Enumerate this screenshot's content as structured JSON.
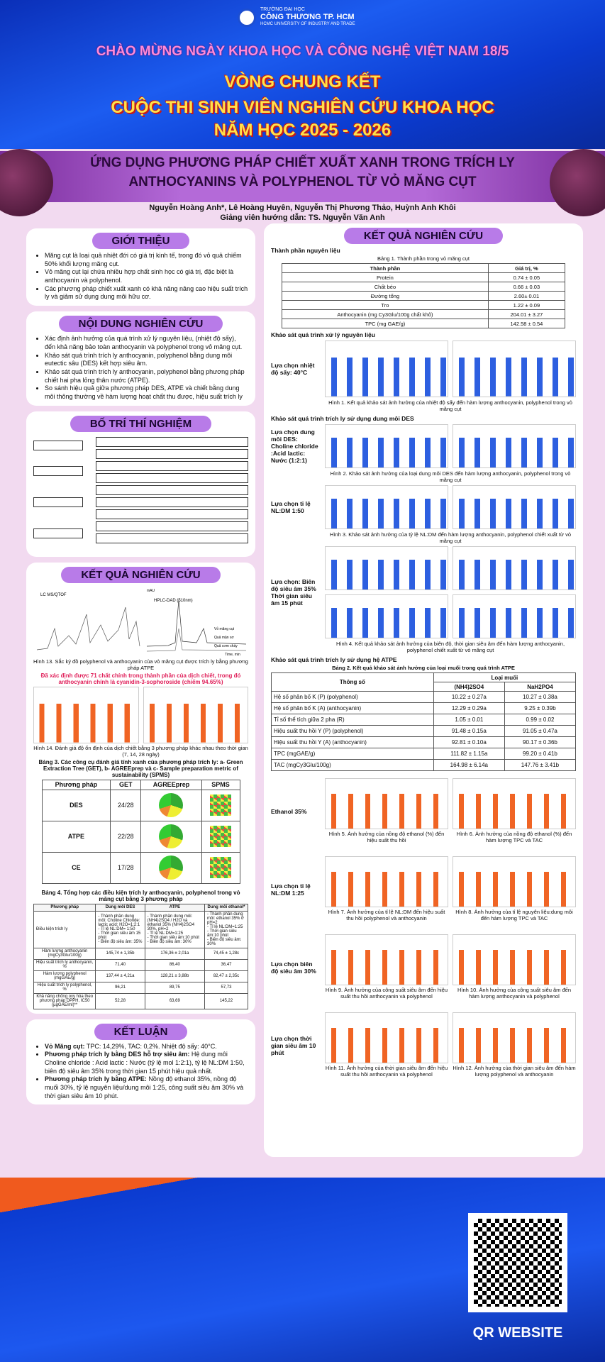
{
  "header": {
    "university_small": "TRƯỜNG ĐẠI HỌC",
    "university": "CÔNG THƯƠNG TP. HCM",
    "university_en": "HCMC UNIVERSITY OF INDUSTRY AND TRADE",
    "celebration": "CHÀO MỪNG NGÀY KHOA HỌC VÀ CÔNG NGHỆ VIỆT NAM 18/5",
    "round": "VÒNG CHUNG KẾT",
    "contest": "CUỘC THI SINH VIÊN NGHIÊN CỨU KHOA HỌC",
    "year": "NĂM HỌC 2025 - 2026"
  },
  "title": "ỨNG DỤNG PHƯƠNG PHÁP CHIẾT XUẤT XANH TRONG TRÍCH LY ANTHOCYANINS VÀ POLYPHENOL TỪ VỎ MĂNG CỤT",
  "authors": "Nguyễn Hoàng Anh*, Lê Hoàng Huyên, Nguyễn Thị Phương Thảo, Huỳnh Anh Khôi",
  "supervisor": "Giảng viên hướng dẫn: TS. Nguyễn Văn Anh",
  "intro": {
    "heading": "GIỚI THIỆU",
    "items": [
      "Măng cụt là loại quả nhiệt đới có giá trị kinh tế, trong đó vỏ quả chiếm 50% khối lượng măng cụt.",
      "Vỏ măng cụt lại chứa nhiều hợp chất sinh học có giá trị, đặc biệt là anthocyanin và polyphenol.",
      "Các phương pháp chiết xuất xanh có khả năng nâng cao hiệu suất trích ly và giảm sử dụng dung môi hữu cơ."
    ]
  },
  "content": {
    "heading": "NỘI DUNG NGHIÊN CỨU",
    "items": [
      "Xác định ảnh hưởng của quá trình xử lý nguyên liệu, (nhiệt độ sấy), đến khả năng bảo toàn anthocyanin và polyphenol trong vỏ măng cụt.",
      "Khảo sát quá trình trích ly anthocyanin, polyphenol bằng dung môi eutectic sâu (DES) kết hợp siêu âm.",
      "Khảo sát quá trình trích ly anthocyanin, polyphenol bằng phương pháp chiết hai pha lỏng thân nước (ATPE).",
      "So sánh hiệu quả giữa phương pháp DES, ATPE và chiết bằng dung môi thông thường về hàm lượng hoạt chất thu được, hiệu suất trích ly"
    ]
  },
  "design": {
    "heading": "BỐ TRÍ THÍ NGHIỆM"
  },
  "results_left": {
    "heading": "KẾT QUẢ NGHIÊN CỨU",
    "fig13_labels": [
      "LC MS/QTOF",
      "HPLC-DAD (510nm)",
      "Vỏ măng cụt",
      "Quả mận sơ",
      "Quả cơm cháy",
      "Time, min",
      "mAU"
    ],
    "fig13_caption": "Hình 13. Sắc ký đồ polyphenol và anthocyanin của vỏ măng cụt được trích ly bằng phương pháp ATPE",
    "highlight": "Đã xác định được 71 chất chính trong thành phần của dịch chiết, trong đó anthocyanin chính là cyanidin-3-sophoroside (chiếm 94.65%)",
    "fig14_caption": "Hình 14. Đánh giá độ ổn định của dịch chiết bằng 3 phương pháp khác nhau theo thời gian (7, 14, 28 ngày)",
    "table3": {
      "title": "Bảng 3. Các công cụ đánh giá tính xanh của phương pháp trích ly: a- Green Extraction Tree (GET), b- AGREEprep và c- Sample preparation metric of sustainability (SPMS)",
      "header": [
        "Phương pháp",
        "GET",
        "AGREEprep",
        "SPMS"
      ],
      "rows": [
        [
          "DES",
          "24/28"
        ],
        [
          "ATPE",
          "22/28"
        ],
        [
          "CE",
          "17/28"
        ]
      ]
    },
    "table4": {
      "title": "Bảng 4. Tổng hợp các điều kiện trích ly anthocyanin, polyphenol trong vỏ măng cụt bằng 3 phương pháp",
      "header": [
        "Phương pháp",
        "Dung môi DES",
        "ATPE",
        "Dung môi ethanol*"
      ],
      "rows": [
        [
          "Điều kiện trích ly",
          "- Thành phần dung môi: Choline Chloride: lactic acid: H2O=1:2:1\n- Tỉ lệ NL:DM= 1:50\n- Thời gian siêu âm 15 phút\n- Biên độ siêu âm: 35%",
          "- Thành phần dung môi: (NH4)2SO4 / H2O và ethanol 35% (NH4)2SO4 30%, pH=2\n- Tỉ lệ NL:DM=1:25\n- Thời gian siêu âm:10 phút\n- Biên độ siêu âm: 30%",
          "- Thành phần dung môi: ethanol 35% ở pH=2\n- Tỉ lệ NL:DM=1:25\n- Thời gian siêu âm:10 phút\n- Biên độ siêu âm: 30%"
        ],
        [
          "Hàm lượng anthocyanin (mgCy3Glu/100g)",
          "145,74 ± 1,35b",
          "176,36 ± 2,01a",
          "74,45 ± 1,28c"
        ],
        [
          "Hiệu suất trích ly anthocyanin, %",
          "71,40",
          "86,40",
          "36,47"
        ],
        [
          "Hàm lượng polyphenol (mgGAE/g)",
          "137,44 ± 4,21a",
          "128,21 ± 3,88b",
          "82,47 ± 2,35c"
        ],
        [
          "Hiệu suất trích ly polyphenol, %",
          "96,21",
          "89,75",
          "57,73"
        ],
        [
          "Khả năng chống oxy hóa theo phương pháp DPPH, IC50 (µgGAE/ml)**",
          "52,28",
          "63,69",
          "145,22"
        ]
      ]
    }
  },
  "conclusion": {
    "heading": "KẾT LUẬN",
    "items": [
      {
        "lead": "Vỏ Măng cụt:",
        "text": " TPC: 14,29%, TAC: 0,2%. Nhiệt độ sấy: 40°C."
      },
      {
        "lead": "Phương pháp trích ly bằng DES hỗ trợ siêu âm:",
        "text": " Hệ dung môi Choline chloride : Acid lactic : Nước (tỷ lệ mol 1:2:1), tỷ lệ NL:DM 1:50, biên độ siêu âm 35% trong thời gian 15 phút hiệu quả nhất."
      },
      {
        "lead": "Phương pháp trích ly bằng ATPE:",
        "text": " Nồng độ ethanol 35%, nồng độ muối 30%, tỷ lệ nguyên liệu/dung môi 1:25, công suất siêu âm 30% và thời gian siêu âm 10 phút."
      }
    ]
  },
  "results_right": {
    "heading": "KẾT QUẢ NGHIÊN CỨU",
    "raw_title": "Thành phần nguyên liệu",
    "table1": {
      "caption": "Bảng 1. Thành phần trong vỏ măng cụt",
      "header": [
        "Thành phần",
        "Giá trị, %"
      ],
      "rows": [
        [
          "Protein",
          "0.74 ± 0.05"
        ],
        [
          "Chất béo",
          "0.66 ± 0.03"
        ],
        [
          "Đường tổng",
          "2.60± 0.01"
        ],
        [
          "Tro",
          "1.22 ± 0.09"
        ],
        [
          "Anthocyanin (mg Cy3Glu/100g chất khô)",
          "204.01 ± 3.27"
        ],
        [
          "TPC (mg GAE/g)",
          "142.58 ± 0.54"
        ]
      ]
    },
    "drying": {
      "title": "Khảo sát quá trình xử lý nguyên liệu",
      "label": "Lựa chọn nhiệt độ sấy: 40°C",
      "caption": "Hình 1. Kết quả khảo sát ảnh hưởng của nhiệt độ sấy đến hàm lượng anthocyanin, polyphenol trong vỏ măng cụt"
    },
    "des": {
      "title": "Khảo sát quá trình trích ly sử dụng dung môi DES",
      "blocks": [
        {
          "label": "Lựa chọn dung môi DES: Choline chloride :Acid lactic: Nước (1:2:1)",
          "caption": "Hình 2. Khảo sát ảnh hưởng của loại dung môi DES đến hàm lượng anthocyanin, polyphenol trong vỏ măng cụt"
        },
        {
          "label": "Lựa chọn tỉ lệ NL:DM 1:50",
          "caption": "Hình 3. Khảo sát ảnh hưởng của tỷ lệ NL:DM đến hàm lượng anthocyanin, polyphenol chiết xuất từ vỏ măng cụt"
        },
        {
          "label": "Lựa chọn: Biên độ siêu âm 35% Thời gian siêu âm 15 phút",
          "caption": "Hình 4. Kết quả khảo sát ảnh hưởng của biên độ, thời gian siêu âm đến hàm lượng anthocyanin, polyphenol chiết xuất từ vỏ măng cụt"
        }
      ]
    },
    "atpe": {
      "title": "Khảo sát quá trình trích ly sử dụng hệ ATPE",
      "table2": {
        "caption": "Bảng 2. Kết quả khảo sát ảnh hưởng của loại muối trong quá trình ATPE",
        "header": [
          "Thông số",
          "Loại muối"
        ],
        "subheader": [
          "(NH4)2SO4",
          "NaH2PO4"
        ],
        "rows": [
          [
            "Hệ số phân bố K (P) (polyphenol)",
            "10.22 ± 0.27a",
            "10.27 ± 0.38a"
          ],
          [
            "Hệ số phân bố K (A) (anthocyanin)",
            "12.29 ± 0.29a",
            "9.25 ± 0.39b"
          ],
          [
            "Tỉ số thể tích giữa 2 pha (R)",
            "1.05 ± 0.01",
            "0.99 ± 0.02"
          ],
          [
            "Hiệu suất thu hồi Y (P) (polyphenol)",
            "91.48 ± 0.15a",
            "91.05 ± 0.47a"
          ],
          [
            "Hiệu suất thu hồi Y (A) (anthocyanin)",
            "92.81 ± 0.10a",
            "90.17 ± 0.36b"
          ],
          [
            "TPC (mgGAE/g)",
            "111.82 ± 1.15a",
            "99.20 ± 0.41b"
          ],
          [
            "TAC (mgCy3Glu/100g)",
            "164.98 ± 6.14a",
            "147.76 ± 3.41b"
          ]
        ]
      },
      "blocks": [
        {
          "label": "Ethanol 35%",
          "captions": [
            "Hình 5. Ảnh hưởng của nồng độ ethanol (%) đến hiệu suất thu hồi",
            "Hình 6. Ảnh hưởng của nồng độ ethanol (%) đến hàm lượng TPC và TAC"
          ]
        },
        {
          "label": "Lựa chọn tỉ lệ NL:DM 1:25",
          "captions": [
            "Hình 7. Ảnh hưởng của tỉ lệ NL:DM đến hiệu suất thu hồi polyphenol và anthocyanin",
            "Hình 8. Ảnh hưởng của tỉ lệ nguyên liệu:dung môi đến hàm lượng TPC và TAC"
          ]
        },
        {
          "label": "Lựa chọn biên độ siêu âm 30%",
          "captions": [
            "Hình 9. Ảnh hưởng của công suất siêu âm đến hiệu suất thu hồi anthocyanin và polyphenol",
            "Hình 10. Ảnh hưởng của công suất siêu âm đến hàm lượng anthocyanin và polyphenol"
          ]
        },
        {
          "label": "Lựa chọn thời gian siêu âm 10 phút",
          "captions": [
            "Hình 11. Ảnh hưởng của thời gian siêu âm đến hiệu suất thu hồi anthocyanin và polyphenol",
            "Hình 12. Ảnh hưởng của thời gian siêu âm đến hàm lượng polyphenol và anthocyanin"
          ]
        }
      ]
    }
  },
  "qr_label": "QR WEBSITE"
}
